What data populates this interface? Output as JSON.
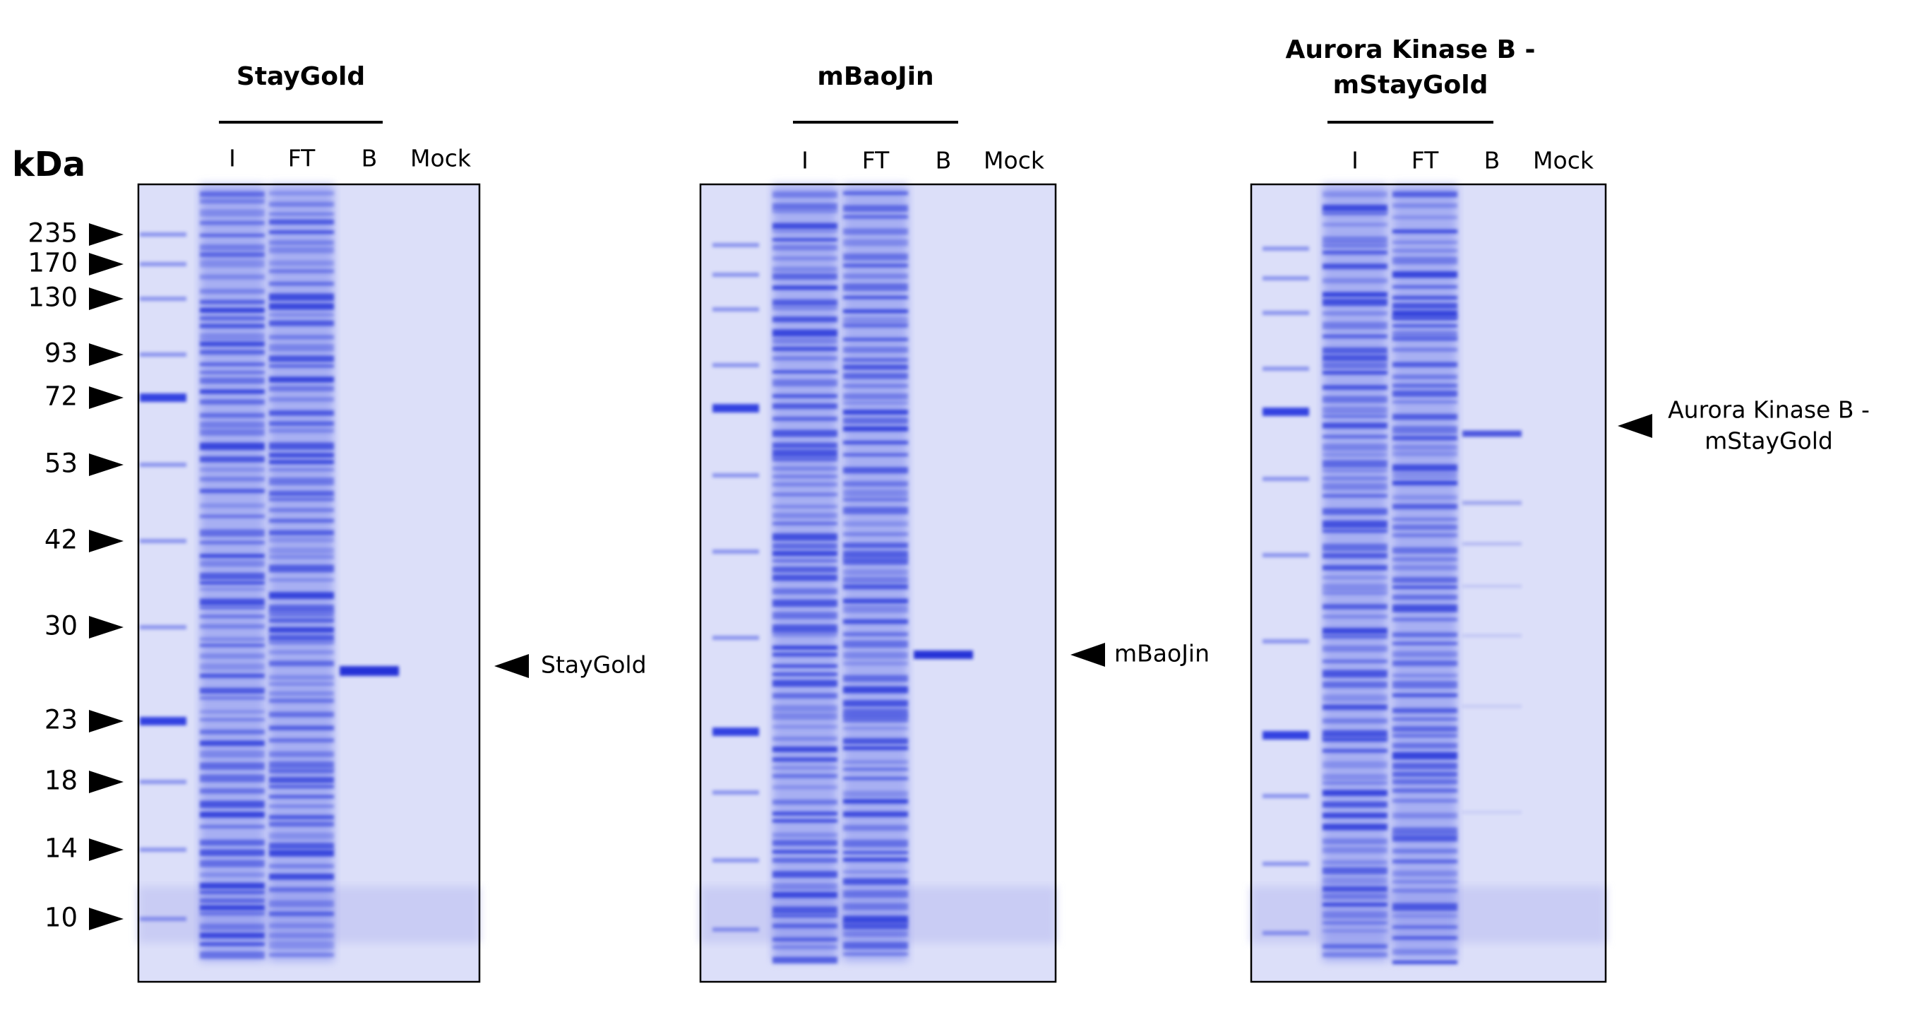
{
  "y_axis_unit": "kDa",
  "markers": [
    235,
    170,
    130,
    93,
    72,
    53,
    42,
    30,
    23,
    18,
    14,
    10
  ],
  "gels": [
    {
      "title": [
        "StayGold"
      ],
      "lanes": [
        "I",
        "FT",
        "B",
        "Mock"
      ],
      "annotation": [
        "StayGold"
      ]
    },
    {
      "title": [
        "mBaoJin"
      ],
      "lanes": [
        "I",
        "FT",
        "B",
        "Mock"
      ],
      "annotation": [
        "mBaoJin"
      ]
    },
    {
      "title": [
        "Aurora Kinase B -",
        "mStayGold"
      ],
      "lanes": [
        "I",
        "FT",
        "B",
        "Mock"
      ],
      "annotation": [
        "Aurora Kinase B -",
        "mStayGold"
      ]
    }
  ]
}
